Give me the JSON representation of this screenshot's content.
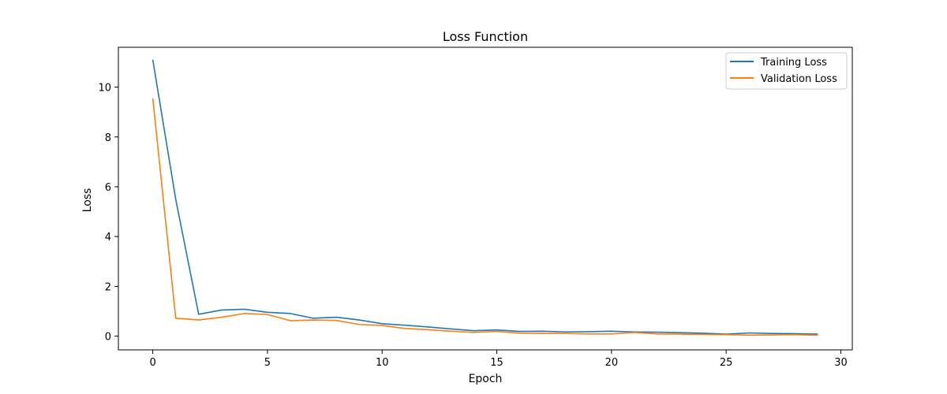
{
  "chart_data": {
    "type": "line",
    "title": "Loss Function",
    "xlabel": "Epoch",
    "ylabel": "Loss",
    "xlim": [
      -1.5,
      30.5
    ],
    "ylim": [
      -0.55,
      11.6
    ],
    "xticks": [
      0,
      5,
      10,
      15,
      20,
      25,
      30
    ],
    "yticks": [
      0,
      2,
      4,
      6,
      8,
      10
    ],
    "grid": false,
    "legend_position": "top-right",
    "x": [
      0,
      1,
      2,
      3,
      4,
      5,
      6,
      7,
      8,
      9,
      10,
      11,
      12,
      13,
      14,
      15,
      16,
      17,
      18,
      19,
      20,
      21,
      22,
      23,
      24,
      25,
      26,
      27,
      28,
      29
    ],
    "series": [
      {
        "name": "Training Loss",
        "color": "#1f77b4",
        "values": [
          11.1,
          5.5,
          0.88,
          1.05,
          1.08,
          0.96,
          0.91,
          0.72,
          0.76,
          0.65,
          0.5,
          0.44,
          0.37,
          0.29,
          0.22,
          0.25,
          0.19,
          0.2,
          0.17,
          0.18,
          0.2,
          0.17,
          0.16,
          0.14,
          0.12,
          0.08,
          0.13,
          0.11,
          0.1,
          0.08
        ]
      },
      {
        "name": "Validation Loss",
        "color": "#ff7f0e",
        "values": [
          9.55,
          0.72,
          0.65,
          0.76,
          0.91,
          0.87,
          0.62,
          0.65,
          0.63,
          0.47,
          0.43,
          0.31,
          0.26,
          0.2,
          0.15,
          0.19,
          0.12,
          0.11,
          0.11,
          0.09,
          0.09,
          0.15,
          0.09,
          0.08,
          0.07,
          0.06,
          0.04,
          0.05,
          0.06,
          0.04
        ]
      }
    ]
  }
}
